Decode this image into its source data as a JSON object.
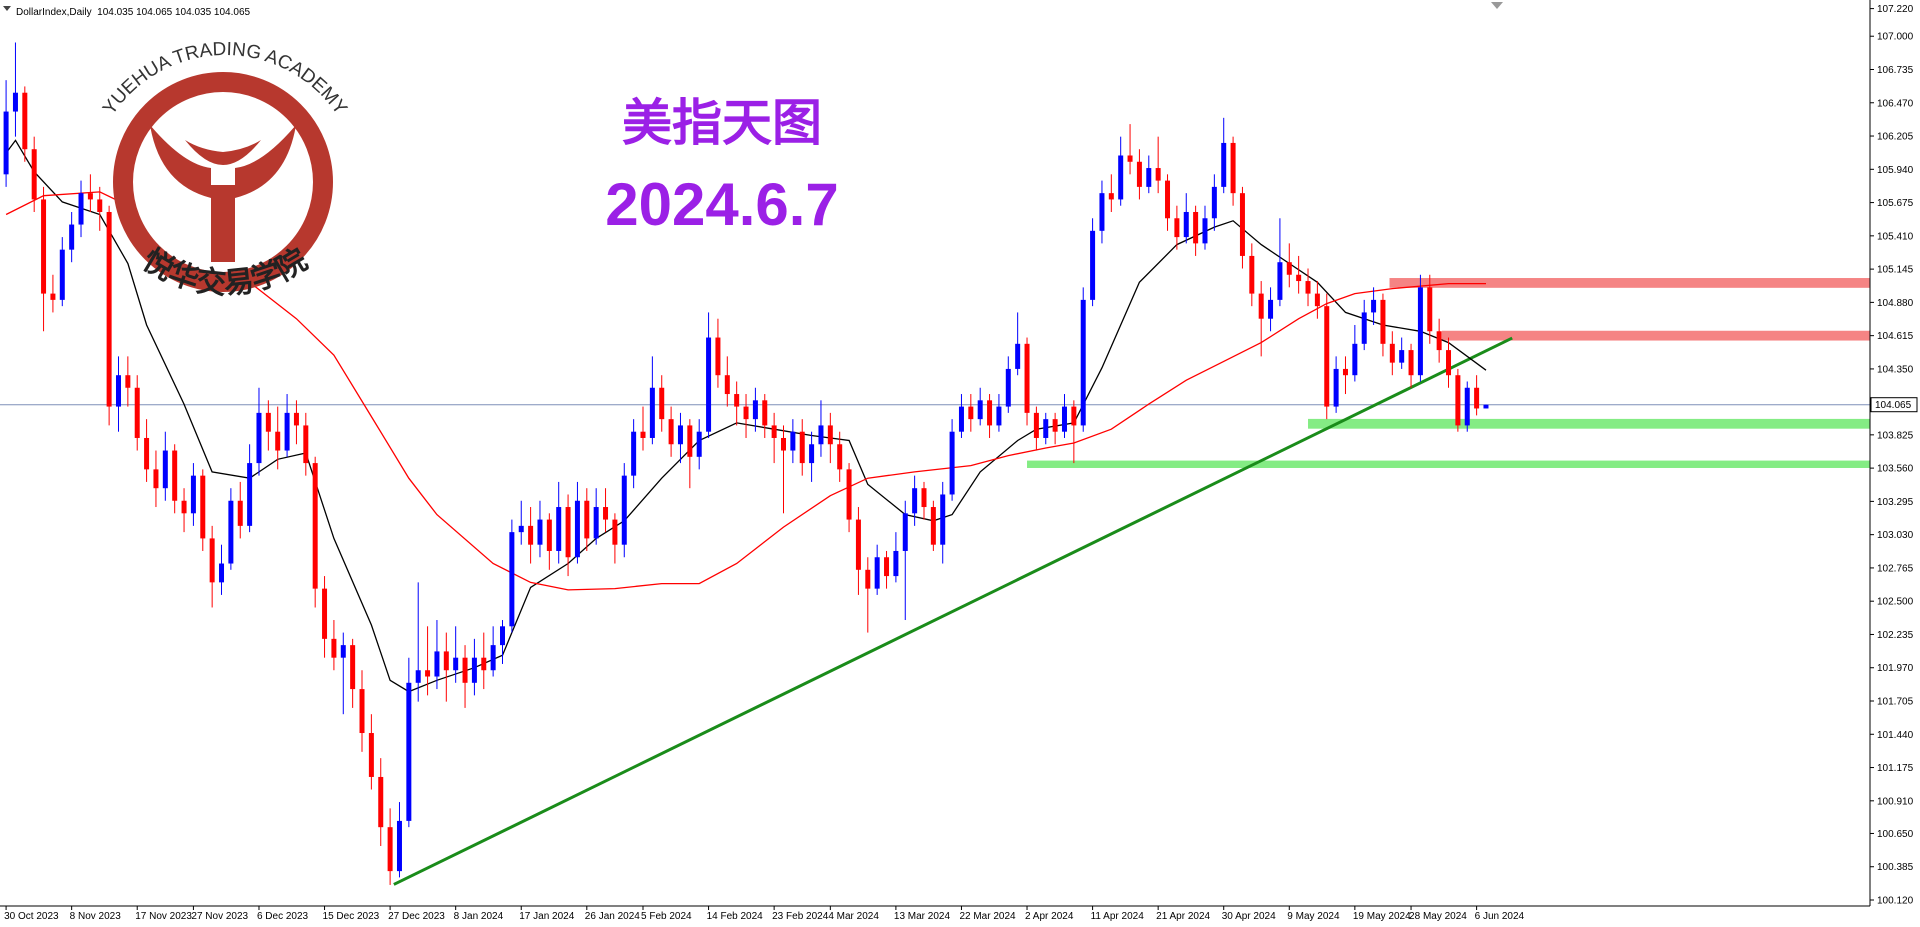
{
  "chart_data": {
    "type": "candlestick",
    "header": "DollarIndex,Daily  104.035 104.065 104.035 104.065",
    "title": "美指天图",
    "subtitle": "2024.6.7",
    "logo": {
      "text": "YUEHUA TRADING ACADEMY",
      "text_cn": "悦华交易学院"
    },
    "up_color": "#0000ff",
    "down_color": "#ff0000",
    "xlim": [
      -0.65,
      199
    ],
    "ylim": [
      100.12,
      107.22
    ],
    "xticks": [
      {
        "value": 0,
        "label": "30 Oct 2023"
      },
      {
        "value": 7,
        "label": "8 Nov 2023"
      },
      {
        "value": 14,
        "label": "17 Nov 2023"
      },
      {
        "value": 20,
        "label": "27 Nov 2023"
      },
      {
        "value": 27,
        "label": "6 Dec 2023"
      },
      {
        "value": 34,
        "label": "15 Dec 2023"
      },
      {
        "value": 41,
        "label": "27 Dec 2023"
      },
      {
        "value": 48,
        "label": "8 Jan 2024"
      },
      {
        "value": 55,
        "label": "17 Jan 2024"
      },
      {
        "value": 62,
        "label": "26 Jan 2024"
      },
      {
        "value": 68,
        "label": "5 Feb 2024"
      },
      {
        "value": 75,
        "label": "14 Feb 2024"
      },
      {
        "value": 82,
        "label": "23 Feb 2024"
      },
      {
        "value": 88,
        "label": "4 Mar 2024"
      },
      {
        "value": 95,
        "label": "13 Mar 2024"
      },
      {
        "value": 102,
        "label": "22 Mar 2024"
      },
      {
        "value": 109,
        "label": "2 Apr 2024"
      },
      {
        "value": 116,
        "label": "11 Apr 2024"
      },
      {
        "value": 123,
        "label": "21 Apr 2024"
      },
      {
        "value": 130,
        "label": "30 Apr 2024"
      },
      {
        "value": 137,
        "label": "9 May 2024"
      },
      {
        "value": 144,
        "label": "19 May 2024"
      },
      {
        "value": 150,
        "label": "28 May 2024"
      },
      {
        "value": 157,
        "label": "6 Jun 2024"
      }
    ],
    "yticks": [
      {
        "value": 107.22,
        "label": "107.220"
      },
      {
        "value": 107,
        "label": "107.000"
      },
      106.735,
      {
        "value": 106.47,
        "label": "106.470"
      },
      106.205,
      {
        "value": 105.94,
        "label": "105.940"
      },
      105.675,
      {
        "value": 105.41,
        "label": "105.410"
      },
      105.145,
      {
        "value": 104.88,
        "label": "104.880"
      },
      104.615,
      {
        "value": 104.35,
        "label": "104.350"
      },
      103.825,
      {
        "value": 103.56,
        "label": "103.560"
      },
      103.295,
      {
        "value": 103.03,
        "label": "103.030"
      },
      102.765,
      {
        "value": 102.5,
        "label": "102.500"
      },
      102.235,
      {
        "value": 101.97,
        "label": "101.970"
      },
      101.705,
      {
        "value": 101.44,
        "label": "101.440"
      },
      101.175,
      {
        "value": 100.91,
        "label": "100.910"
      },
      {
        "value": 100.65,
        "label": "100.650"
      },
      100.385,
      {
        "value": 100.12,
        "label": "100.120"
      }
    ],
    "last_price": 104.065,
    "ohlc": [
      [
        105.9,
        106.65,
        105.8,
        106.4
      ],
      [
        106.4,
        106.95,
        106.2,
        106.55
      ],
      [
        106.55,
        106.6,
        106.0,
        106.1
      ],
      [
        106.1,
        106.2,
        105.6,
        105.7
      ],
      [
        105.7,
        105.8,
        104.65,
        104.95
      ],
      [
        104.95,
        105.1,
        104.8,
        104.9
      ],
      [
        104.9,
        105.4,
        104.85,
        105.3
      ],
      [
        105.3,
        105.6,
        105.2,
        105.5
      ],
      [
        105.5,
        105.85,
        105.4,
        105.75
      ],
      [
        105.75,
        105.9,
        105.6,
        105.7
      ],
      [
        105.7,
        105.8,
        105.45,
        105.6
      ],
      [
        105.6,
        105.65,
        103.9,
        104.05
      ],
      [
        104.05,
        104.45,
        103.85,
        104.3
      ],
      [
        104.3,
        104.45,
        104.05,
        104.2
      ],
      [
        104.2,
        104.3,
        103.7,
        103.8
      ],
      [
        103.8,
        103.95,
        103.45,
        103.55
      ],
      [
        103.55,
        103.7,
        103.25,
        103.4
      ],
      [
        103.4,
        103.85,
        103.3,
        103.7
      ],
      [
        103.7,
        103.75,
        103.2,
        103.3
      ],
      [
        103.3,
        103.4,
        103.05,
        103.2
      ],
      [
        103.2,
        103.6,
        103.1,
        103.5
      ],
      [
        103.5,
        103.55,
        102.9,
        103.0
      ],
      [
        103.0,
        103.1,
        102.45,
        102.65
      ],
      [
        102.65,
        102.95,
        102.55,
        102.8
      ],
      [
        102.8,
        103.4,
        102.75,
        103.3
      ],
      [
        103.3,
        103.45,
        103.0,
        103.1
      ],
      [
        103.1,
        103.75,
        103.05,
        103.6
      ],
      [
        103.6,
        104.2,
        103.5,
        104.0
      ],
      [
        104.0,
        104.1,
        103.7,
        103.85
      ],
      [
        103.85,
        104.05,
        103.55,
        103.7
      ],
      [
        103.7,
        104.15,
        103.65,
        104.0
      ],
      [
        104.0,
        104.1,
        103.75,
        103.9
      ],
      [
        103.9,
        104.0,
        103.5,
        103.6
      ],
      [
        103.6,
        103.65,
        102.45,
        102.6
      ],
      [
        102.6,
        102.7,
        102.05,
        102.2
      ],
      [
        102.2,
        102.35,
        101.95,
        102.05
      ],
      [
        102.05,
        102.25,
        101.6,
        102.15
      ],
      [
        102.15,
        102.2,
        101.65,
        101.8
      ],
      [
        101.8,
        101.95,
        101.3,
        101.45
      ],
      [
        101.45,
        101.6,
        101.0,
        101.1
      ],
      [
        101.1,
        101.25,
        100.55,
        100.7
      ],
      [
        100.7,
        100.85,
        100.24,
        100.35
      ],
      [
        100.35,
        100.9,
        100.3,
        100.75
      ],
      [
        100.75,
        102.05,
        100.7,
        101.85
      ],
      [
        101.85,
        102.65,
        101.7,
        101.95
      ],
      [
        101.95,
        102.3,
        101.75,
        101.9
      ],
      [
        101.9,
        102.35,
        101.8,
        102.1
      ],
      [
        102.1,
        102.25,
        101.7,
        101.95
      ],
      [
        101.95,
        102.3,
        101.85,
        102.05
      ],
      [
        102.05,
        102.15,
        101.65,
        101.85
      ],
      [
        101.85,
        102.2,
        101.75,
        102.05
      ],
      [
        102.05,
        102.25,
        101.8,
        101.95
      ],
      [
        101.95,
        102.3,
        101.9,
        102.15
      ],
      [
        102.15,
        102.35,
        102.0,
        102.3
      ],
      [
        102.3,
        103.15,
        102.25,
        103.05
      ],
      [
        103.05,
        103.3,
        102.95,
        103.1
      ],
      [
        103.1,
        103.25,
        102.8,
        102.95
      ],
      [
        102.95,
        103.3,
        102.85,
        103.15
      ],
      [
        103.15,
        103.2,
        102.75,
        102.9
      ],
      [
        102.9,
        103.45,
        102.8,
        103.25
      ],
      [
        103.25,
        103.35,
        102.7,
        102.85
      ],
      [
        102.85,
        103.45,
        102.8,
        103.3
      ],
      [
        103.3,
        103.4,
        102.9,
        103.0
      ],
      [
        103.0,
        103.4,
        102.95,
        103.25
      ],
      [
        103.25,
        103.4,
        103.05,
        103.15
      ],
      [
        103.15,
        103.2,
        102.8,
        102.95
      ],
      [
        102.95,
        103.6,
        102.85,
        103.5
      ],
      [
        103.5,
        103.95,
        103.4,
        103.85
      ],
      [
        103.85,
        104.05,
        103.7,
        103.8
      ],
      [
        103.8,
        104.45,
        103.75,
        104.2
      ],
      [
        104.2,
        104.3,
        103.85,
        103.95
      ],
      [
        103.95,
        104.05,
        103.65,
        103.75
      ],
      [
        103.75,
        104.0,
        103.6,
        103.9
      ],
      [
        103.9,
        103.95,
        103.4,
        103.65
      ],
      [
        103.65,
        103.95,
        103.55,
        103.85
      ],
      [
        103.85,
        104.8,
        103.8,
        104.6
      ],
      [
        104.6,
        104.75,
        104.2,
        104.3
      ],
      [
        104.3,
        104.45,
        104.05,
        104.15
      ],
      [
        104.15,
        104.25,
        103.9,
        104.05
      ],
      [
        104.05,
        104.15,
        103.8,
        103.95
      ],
      [
        103.95,
        104.2,
        103.85,
        104.1
      ],
      [
        104.1,
        104.15,
        103.8,
        103.9
      ],
      [
        103.9,
        104.0,
        103.6,
        103.8
      ],
      [
        103.8,
        103.9,
        103.2,
        103.7
      ],
      [
        103.7,
        103.95,
        103.6,
        103.85
      ],
      [
        103.85,
        103.95,
        103.5,
        103.6
      ],
      [
        103.6,
        103.85,
        103.45,
        103.75
      ],
      [
        103.75,
        104.1,
        103.65,
        103.9
      ],
      [
        103.9,
        104.0,
        103.6,
        103.75
      ],
      [
        103.75,
        103.85,
        103.45,
        103.55
      ],
      [
        103.55,
        103.6,
        103.05,
        103.15
      ],
      [
        103.15,
        103.25,
        102.55,
        102.75
      ],
      [
        102.75,
        102.85,
        102.25,
        102.6
      ],
      [
        102.6,
        102.95,
        102.55,
        102.85
      ],
      [
        102.85,
        102.9,
        102.6,
        102.7
      ],
      [
        102.7,
        103.05,
        102.65,
        102.9
      ],
      [
        102.9,
        103.3,
        102.35,
        103.2
      ],
      [
        103.2,
        103.5,
        103.1,
        103.4
      ],
      [
        103.4,
        103.45,
        103.15,
        103.25
      ],
      [
        103.25,
        103.3,
        102.9,
        102.95
      ],
      [
        102.95,
        103.45,
        102.8,
        103.35
      ],
      [
        103.35,
        103.95,
        103.3,
        103.85
      ],
      [
        103.85,
        104.15,
        103.8,
        104.05
      ],
      [
        104.05,
        104.15,
        103.85,
        103.95
      ],
      [
        103.95,
        104.2,
        103.9,
        104.1
      ],
      [
        104.1,
        104.15,
        103.8,
        103.9
      ],
      [
        103.9,
        104.15,
        103.85,
        104.05
      ],
      [
        104.05,
        104.45,
        104.0,
        104.35
      ],
      [
        104.35,
        104.8,
        104.3,
        104.55
      ],
      [
        104.55,
        104.6,
        103.9,
        104.0
      ],
      [
        104.0,
        104.05,
        103.7,
        103.8
      ],
      [
        103.8,
        104.0,
        103.75,
        103.95
      ],
      [
        103.95,
        104.0,
        103.75,
        103.85
      ],
      [
        103.85,
        104.15,
        103.8,
        104.05
      ],
      [
        104.05,
        104.1,
        103.6,
        103.9
      ],
      [
        103.9,
        105.0,
        103.85,
        104.9
      ],
      [
        104.9,
        105.55,
        104.85,
        105.45
      ],
      [
        105.45,
        105.85,
        105.35,
        105.75
      ],
      [
        105.75,
        105.9,
        105.6,
        105.7
      ],
      [
        105.7,
        106.2,
        105.65,
        106.05
      ],
      [
        106.05,
        106.3,
        105.9,
        106.0
      ],
      [
        106.0,
        106.1,
        105.7,
        105.8
      ],
      [
        105.8,
        106.05,
        105.75,
        105.95
      ],
      [
        105.95,
        106.2,
        105.75,
        105.85
      ],
      [
        105.85,
        105.9,
        105.45,
        105.55
      ],
      [
        105.55,
        105.65,
        105.3,
        105.4
      ],
      [
        105.4,
        105.75,
        105.35,
        105.6
      ],
      [
        105.6,
        105.65,
        105.25,
        105.35
      ],
      [
        105.35,
        105.65,
        105.3,
        105.55
      ],
      [
        105.55,
        105.9,
        105.45,
        105.8
      ],
      [
        105.8,
        106.35,
        105.75,
        106.15
      ],
      [
        106.15,
        106.2,
        105.65,
        105.75
      ],
      [
        105.75,
        105.8,
        105.15,
        105.25
      ],
      [
        105.25,
        105.35,
        104.85,
        104.95
      ],
      [
        104.95,
        105.05,
        104.45,
        104.75
      ],
      [
        104.75,
        105.0,
        104.65,
        104.9
      ],
      [
        104.9,
        105.55,
        104.85,
        105.2
      ],
      [
        105.2,
        105.35,
        105.0,
        105.1
      ],
      [
        105.1,
        105.25,
        104.95,
        105.05
      ],
      [
        105.05,
        105.15,
        104.85,
        104.95
      ],
      [
        104.95,
        105.05,
        104.75,
        104.85
      ],
      [
        104.85,
        104.95,
        103.95,
        104.05
      ],
      [
        104.05,
        104.45,
        104.0,
        104.35
      ],
      [
        104.35,
        104.45,
        104.15,
        104.3
      ],
      [
        104.3,
        104.7,
        104.25,
        104.55
      ],
      [
        104.55,
        104.9,
        104.5,
        104.8
      ],
      [
        104.8,
        105.0,
        104.7,
        104.9
      ],
      [
        104.9,
        104.95,
        104.45,
        104.55
      ],
      [
        104.55,
        104.65,
        104.3,
        104.4
      ],
      [
        104.4,
        104.6,
        104.35,
        104.5
      ],
      [
        104.5,
        104.55,
        104.2,
        104.3
      ],
      [
        104.3,
        105.1,
        104.25,
        105.0
      ],
      [
        105.0,
        105.1,
        104.55,
        104.65
      ],
      [
        104.65,
        104.75,
        104.4,
        104.5
      ],
      [
        104.5,
        104.6,
        104.2,
        104.3
      ],
      [
        104.3,
        104.35,
        103.85,
        103.9
      ],
      [
        103.9,
        104.25,
        103.85,
        104.2
      ],
      [
        104.2,
        104.3,
        103.98,
        104.035
      ],
      [
        104.035,
        104.065,
        104.035,
        104.065
      ]
    ],
    "lines": [
      {
        "color": "#000000",
        "x": [
          0,
          1,
          3,
          6,
          10,
          13,
          15,
          19,
          22,
          26,
          29,
          32,
          35,
          39,
          41,
          43,
          46,
          50,
          53,
          56,
          60,
          63,
          66,
          70,
          74,
          78,
          82,
          86,
          90,
          92,
          96,
          99,
          101,
          104,
          108,
          110,
          114,
          117,
          121,
          125,
          129,
          131,
          134,
          137,
          140,
          143,
          147,
          151,
          154,
          158
        ],
        "y": [
          106.07,
          106.17,
          105.92,
          105.68,
          105.58,
          105.19,
          104.7,
          104.07,
          103.53,
          103.48,
          103.63,
          103.68,
          103.0,
          102.31,
          101.87,
          101.78,
          101.87,
          101.97,
          102.07,
          102.61,
          102.8,
          103.0,
          103.14,
          103.48,
          103.78,
          103.92,
          103.87,
          103.82,
          103.78,
          103.43,
          103.19,
          103.14,
          103.19,
          103.53,
          103.78,
          103.87,
          103.92,
          104.36,
          105.04,
          105.34,
          105.48,
          105.53,
          105.34,
          105.19,
          105.04,
          104.8,
          104.7,
          104.65,
          104.56,
          104.34
        ]
      },
      {
        "color": "#ff0000",
        "x": [
          0,
          4,
          10,
          15,
          20,
          26,
          31,
          35,
          39,
          43,
          46,
          52,
          56,
          60,
          65,
          70,
          74,
          78,
          83,
          88,
          92,
          97,
          103,
          107,
          111,
          114,
          118,
          122,
          126,
          130,
          134,
          138,
          141,
          144,
          148,
          154,
          158
        ],
        "y": [
          105.58,
          105.73,
          105.76,
          105.58,
          105.34,
          105.04,
          104.75,
          104.46,
          103.97,
          103.48,
          103.19,
          102.8,
          102.65,
          102.59,
          102.6,
          102.64,
          102.64,
          102.8,
          103.09,
          103.34,
          103.48,
          103.53,
          103.58,
          103.66,
          103.72,
          103.76,
          103.87,
          104.07,
          104.26,
          104.41,
          104.56,
          104.75,
          104.87,
          104.95,
          104.99,
          105.03,
          105.03
        ]
      }
    ],
    "zones": [
      {
        "color": "#f58484",
        "start": 147.7,
        "top": 105.074,
        "bottom": 104.996
      },
      {
        "color": "#f58484",
        "start": 153.3,
        "top": 104.654,
        "bottom": 104.576
      },
      {
        "color": "#84ec84",
        "start": 139,
        "top": 103.952,
        "bottom": 103.874
      },
      {
        "color": "#84ec84",
        "start": 109,
        "top": 103.62,
        "bottom": 103.561
      }
    ],
    "trendline": {
      "color": "#1a8c1a",
      "x": [
        41.4,
        160.8
      ],
      "y": [
        100.244,
        104.596
      ]
    }
  }
}
